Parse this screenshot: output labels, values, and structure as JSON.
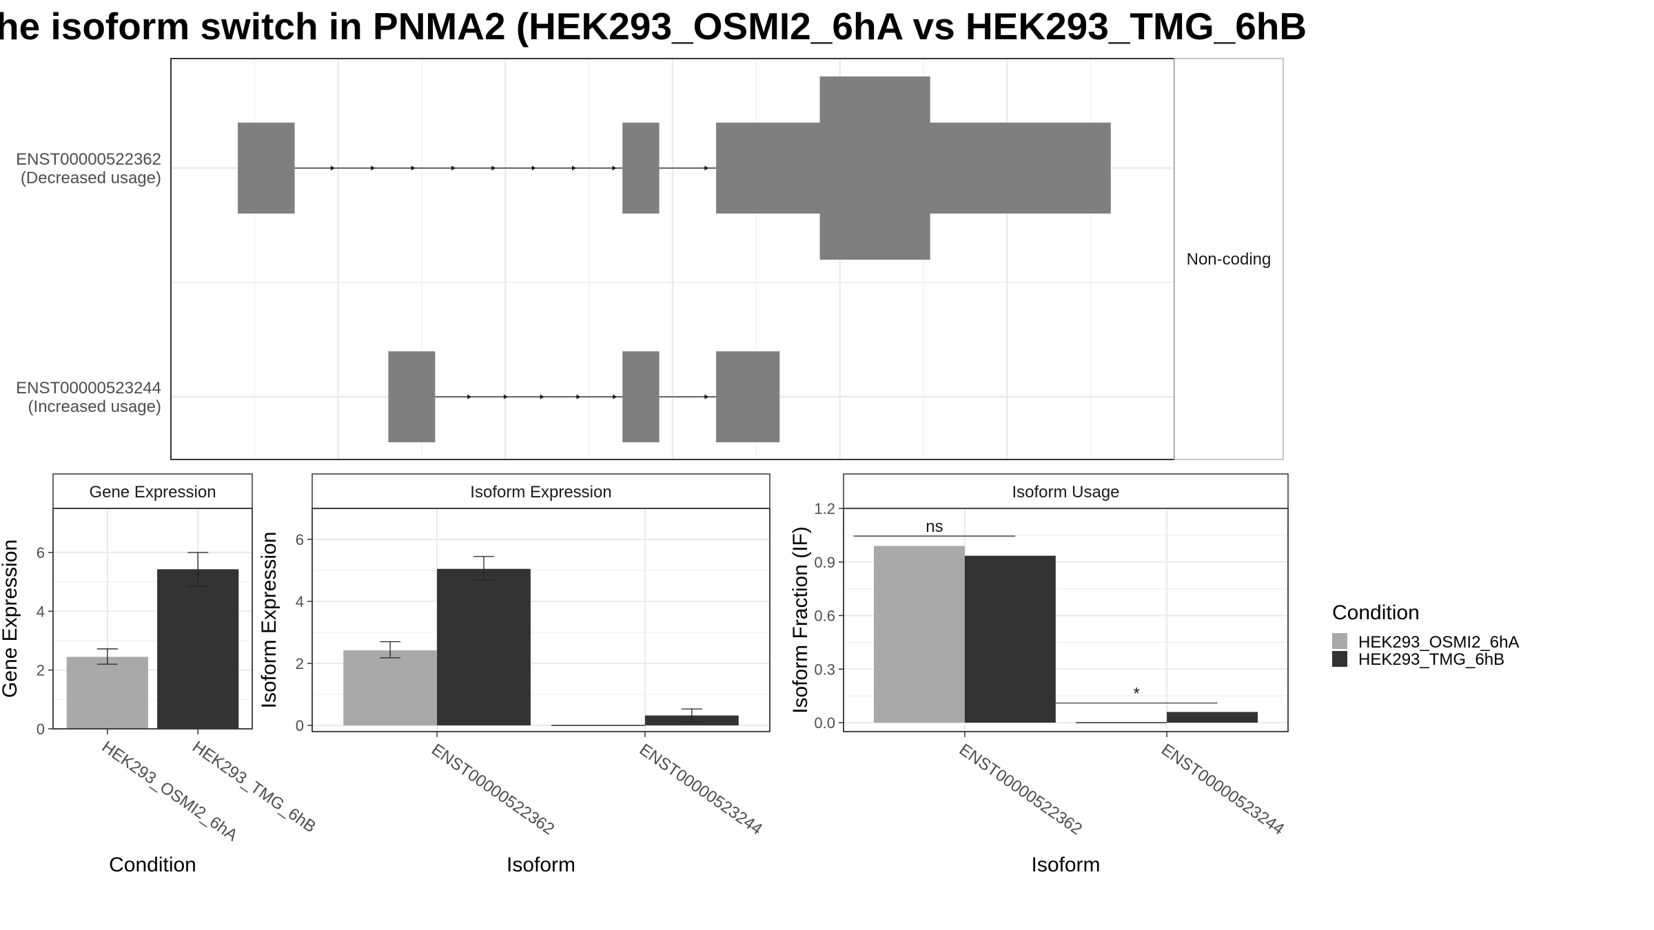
{
  "title": "he isoform switch in PNMA2 (HEK293_OSMI2_6hA vs HEK293_TMG_6hB",
  "colors": {
    "exon": "#7f7f7f",
    "condA": "#a9a9a9",
    "condB": "#333333",
    "grid": "#ebebeb",
    "axis": "#333333"
  },
  "structure": {
    "facet_label": "Non-coding",
    "transcripts": [
      {
        "id": "ENST00000522362",
        "note": "(Decreased usage)",
        "exons": [
          [
            0.2,
            0.37
          ],
          [
            1.35,
            1.46
          ],
          [
            1.63,
            2.81
          ]
        ],
        "cds": [
          [
            1.94,
            2.27
          ]
        ]
      },
      {
        "id": "ENST00000523244",
        "note": "(Increased usage)",
        "exons": [
          [
            0.65,
            0.79
          ],
          [
            1.35,
            1.46
          ],
          [
            1.63,
            1.82
          ]
        ],
        "cds": []
      }
    ]
  },
  "legend": {
    "title": "Condition",
    "items": [
      "HEK293_OSMI2_6hA",
      "HEK293_TMG_6hB"
    ]
  },
  "chart_data": [
    {
      "type": "bar",
      "title": "Gene Expression",
      "xlabel": "Condition",
      "ylabel": "Gene Expression",
      "ylim": [
        0,
        7.5
      ],
      "yticks": [
        0,
        2,
        4,
        6
      ],
      "categories": [
        "HEK293_OSMI2_6hA",
        "HEK293_TMG_6hB"
      ],
      "values": [
        2.45,
        5.43
      ],
      "errors": [
        [
          2.2,
          2.72
        ],
        [
          4.85,
          6.0
        ]
      ]
    },
    {
      "type": "bar",
      "title": "Isoform Expression",
      "xlabel": "Isoform",
      "ylabel": "Isoform Expression",
      "ylim": [
        -0.2,
        7.0
      ],
      "yticks": [
        0,
        2,
        4,
        6
      ],
      "categories": [
        "ENST00000522362",
        "ENST00000523244"
      ],
      "series": [
        {
          "name": "HEK293_OSMI2_6hA",
          "values": [
            2.42,
            0.0
          ],
          "errors": [
            [
              2.18,
              2.7
            ],
            [
              0.0,
              0.0
            ]
          ]
        },
        {
          "name": "HEK293_TMG_6hB",
          "values": [
            5.05,
            0.32
          ],
          "errors": [
            [
              4.68,
              5.45
            ],
            [
              0.12,
              0.53
            ]
          ]
        }
      ]
    },
    {
      "type": "bar",
      "title": "Isoform Usage",
      "xlabel": "Isoform",
      "ylabel": "Isoform Fraction (IF)",
      "ylim": [
        -0.05,
        1.2
      ],
      "yticks": [
        "0.0",
        "0.3",
        "0.6",
        "0.9",
        "1.2"
      ],
      "categories": [
        "ENST00000522362",
        "ENST00000523244"
      ],
      "series": [
        {
          "name": "HEK293_OSMI2_6hA",
          "values": [
            0.99,
            0.0
          ]
        },
        {
          "name": "HEK293_TMG_6hB",
          "values": [
            0.935,
            0.06
          ]
        }
      ],
      "significance": [
        {
          "label": "ns",
          "y": 1.045
        },
        {
          "label": "*",
          "y": 0.11
        }
      ]
    }
  ]
}
